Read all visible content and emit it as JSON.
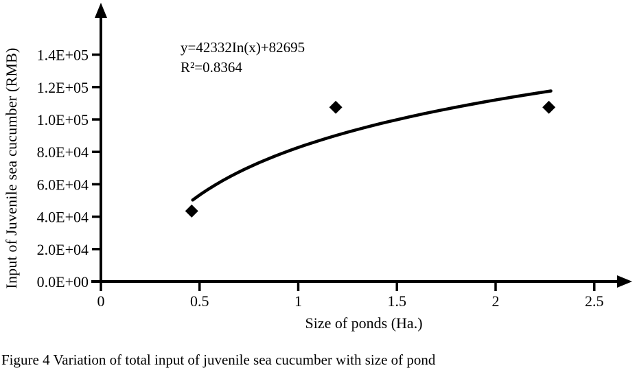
{
  "figure": {
    "caption": "Figure 4 Variation of total input of juvenile sea cucumber with size of pond"
  },
  "chart_data": {
    "type": "scatter",
    "title": "",
    "xlabel": "Size of ponds (Ha.)",
    "ylabel": "Input of Juvenile sea cucumber (RMB)",
    "xlim": [
      0,
      2.7
    ],
    "ylim": [
      0,
      170000
    ],
    "grid": false,
    "legend": null,
    "x_ticks": {
      "values": [
        0,
        0.5,
        1,
        1.5,
        2,
        2.5
      ],
      "labels": [
        "0",
        "0.5",
        "1",
        "1.5",
        "2",
        "2.5"
      ]
    },
    "y_ticks": {
      "values": [
        0,
        20000,
        40000,
        60000,
        80000,
        100000,
        120000,
        140000
      ],
      "labels": [
        "0.0E+00",
        "2.0E+04",
        "4.0E+04",
        "6.0E+04",
        "8.0E+04",
        "1.0E+05",
        "1.2E+05",
        "1.4E+05"
      ]
    },
    "series": [
      {
        "name": "Input of juvenile sea cucumber",
        "marker": "diamond",
        "color": "#000000",
        "points": [
          {
            "x": 0.46,
            "y": 43500
          },
          {
            "x": 1.19,
            "y": 107500
          },
          {
            "x": 2.27,
            "y": 107500
          }
        ]
      }
    ],
    "trendline": {
      "type": "logarithmic",
      "a": 42332,
      "b": 82695,
      "domain": [
        0.465,
        2.28
      ],
      "color": "#000000",
      "equation_label": "y=42332In(x)+82695",
      "r_squared_label": "R²=0.8364"
    }
  },
  "colors": {
    "foreground": "#000000",
    "background": "#ffffff"
  }
}
